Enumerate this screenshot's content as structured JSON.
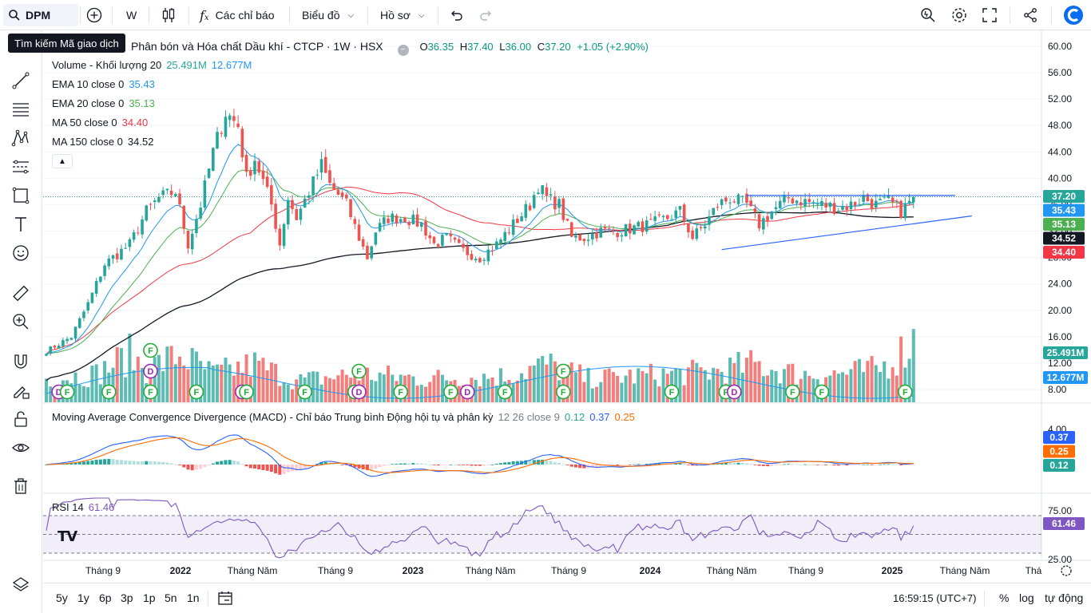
{
  "toolbar": {
    "symbol": "DPM",
    "interval": "W",
    "indicators_label": "Các chỉ báo",
    "chart_label": "Biểu đồ",
    "profile_label": "Hồ sơ"
  },
  "tooltip": "Tìm kiếm Mã giao dịch",
  "legend": {
    "title": "Phân bón và Hóa chất Dầu khí - CTCP · 1W · HSX",
    "o_label": "O",
    "o": "36.35",
    "h_label": "H",
    "h": "37.40",
    "l_label": "L",
    "l": "36.00",
    "c_label": "C",
    "c": "37.20",
    "change": "+1.05 (+2.90%)",
    "volume_label": "Volume - Khối lượng 20",
    "volume_v1": "25.491M",
    "volume_v2": "12.677M",
    "ema10_label": "EMA 10 close 0",
    "ema10": "35.43",
    "ema20_label": "EMA 20 close 0",
    "ema20": "35.13",
    "ma50_label": "MA 50 close 0",
    "ma50": "34.40",
    "ma150_label": "MA 150 close 0",
    "ma150": "34.52",
    "macd_label": "Moving Average Convergence Divergence (MACD) - Chỉ báo Trung bình Động hội tụ và phân kỳ",
    "macd_params": "12 26 close 9",
    "macd_v1": "0.12",
    "macd_v2": "0.37",
    "macd_v3": "0.25",
    "rsi_label": "RSI 14",
    "rsi_value": "61.46"
  },
  "colors": {
    "up": "#26a69a",
    "down": "#ef5350",
    "ema10": "#2196f3",
    "ema20": "#4caf50",
    "ma50": "#f23645",
    "ma150": "#131722",
    "macd": "#2962ff",
    "signal": "#ff6d00",
    "rsi": "#7e57c2",
    "event_f": "#22ab37",
    "event_d": "#9c27b0"
  },
  "bottombar": {
    "ranges": [
      "5y",
      "1y",
      "6p",
      "3p",
      "1p",
      "5n",
      "1n"
    ],
    "time": "16:59:15 (UTC+7)",
    "percent_label": "%",
    "log_label": "log",
    "auto_label": "tự động"
  },
  "chart_data": {
    "type": "candlestick",
    "price_axis": {
      "min": 8,
      "max": 60,
      "ticks": [
        "60.00",
        "56.00",
        "52.00",
        "48.00",
        "44.00",
        "40.00",
        "36.00",
        "32.00",
        "28.00",
        "24.00",
        "20.00",
        "16.00",
        "12.00",
        "8.00"
      ]
    },
    "time_axis": [
      "Tháng 9",
      "2022",
      "Tháng Năm",
      "Tháng 9",
      "2023",
      "Tháng Năm",
      "Tháng 9",
      "2024",
      "Tháng Năm",
      "Tháng 9",
      "2025",
      "Tháng Năm",
      "Thá"
    ],
    "price_labels": [
      "37.20",
      "35.43",
      "35.13",
      "34.52",
      "34.40"
    ],
    "volume_labels": [
      "25.491M",
      "12.677M"
    ],
    "macd_axis_tick": "4.00",
    "macd_labels": [
      "0.37",
      "0.25",
      "0.12"
    ],
    "rsi_axis_ticks": [
      "75.00",
      "25.00"
    ],
    "rsi_label": "61.46",
    "anchors": [
      [
        0,
        13.8
      ],
      [
        6,
        16
      ],
      [
        10,
        21
      ],
      [
        14,
        27
      ],
      [
        20,
        30
      ],
      [
        24,
        35
      ],
      [
        27,
        37
      ],
      [
        31,
        38
      ],
      [
        34,
        30
      ],
      [
        37,
        36
      ],
      [
        40,
        44
      ],
      [
        43,
        50
      ],
      [
        46,
        48
      ],
      [
        48,
        40
      ],
      [
        50,
        43
      ],
      [
        54,
        36
      ],
      [
        56,
        30
      ],
      [
        58,
        37
      ],
      [
        60,
        34
      ],
      [
        63,
        38
      ],
      [
        66,
        42
      ],
      [
        68,
        39
      ],
      [
        72,
        36
      ],
      [
        75,
        31
      ],
      [
        77,
        28
      ],
      [
        79,
        32
      ],
      [
        82,
        34
      ],
      [
        86,
        34
      ],
      [
        90,
        33
      ],
      [
        93,
        30
      ],
      [
        96,
        31
      ],
      [
        100,
        29
      ],
      [
        104,
        28
      ],
      [
        108,
        30
      ],
      [
        112,
        33
      ],
      [
        116,
        36
      ],
      [
        118,
        39
      ],
      [
        120,
        37
      ],
      [
        123,
        36
      ],
      [
        126,
        31
      ],
      [
        129,
        31
      ],
      [
        133,
        32
      ],
      [
        137,
        32
      ],
      [
        141,
        32.5
      ],
      [
        145,
        33
      ],
      [
        149,
        34
      ],
      [
        152,
        35
      ],
      [
        155,
        31
      ],
      [
        158,
        33
      ],
      [
        161,
        36
      ],
      [
        164,
        37
      ],
      [
        168,
        36
      ],
      [
        171,
        33
      ],
      [
        174,
        35
      ],
      [
        178,
        37
      ],
      [
        182,
        36.5
      ],
      [
        186,
        36
      ],
      [
        190,
        35.5
      ],
      [
        193,
        36
      ],
      [
        196,
        37
      ],
      [
        199,
        36
      ],
      [
        202,
        36.5
      ],
      [
        205,
        35
      ],
      [
        207,
        36.35
      ],
      [
        208,
        37.2
      ]
    ],
    "volume_peaks": [
      [
        0,
        10
      ],
      [
        12,
        12
      ],
      [
        20,
        20
      ],
      [
        24,
        14
      ],
      [
        32,
        20
      ],
      [
        40,
        12
      ],
      [
        50,
        16
      ],
      [
        60,
        9
      ],
      [
        75,
        12
      ],
      [
        90,
        10
      ],
      [
        110,
        11
      ],
      [
        120,
        16
      ],
      [
        130,
        10
      ],
      [
        150,
        12
      ],
      [
        160,
        13
      ],
      [
        170,
        16
      ],
      [
        180,
        12
      ],
      [
        190,
        12
      ],
      [
        200,
        14
      ],
      [
        208,
        25.5
      ]
    ],
    "event_markers": [
      {
        "i": 3,
        "label": "D",
        "tier": 0
      },
      {
        "i": 5,
        "label": "F",
        "tier": 0
      },
      {
        "i": 15,
        "label": "F",
        "tier": 0
      },
      {
        "i": 25,
        "label": "F",
        "tier": 0
      },
      {
        "i": 25,
        "label": "D",
        "tier": 1
      },
      {
        "i": 25,
        "label": "F",
        "tier": 2
      },
      {
        "i": 36,
        "label": "F",
        "tier": 0
      },
      {
        "i": 47,
        "label": "D",
        "tier": 0
      },
      {
        "i": 48,
        "label": "F",
        "tier": 0
      },
      {
        "i": 62,
        "label": "F",
        "tier": 0
      },
      {
        "i": 74,
        "label": "F",
        "tier": 0
      },
      {
        "i": 75,
        "label": "D",
        "tier": 0
      },
      {
        "i": 75,
        "label": "F",
        "tier": 1
      },
      {
        "i": 85,
        "label": "F",
        "tier": 0
      },
      {
        "i": 97,
        "label": "F",
        "tier": 0
      },
      {
        "i": 101,
        "label": "D",
        "tier": 0
      },
      {
        "i": 110,
        "label": "F",
        "tier": 0
      },
      {
        "i": 124,
        "label": "F",
        "tier": 0
      },
      {
        "i": 124,
        "label": "F",
        "tier": 1
      },
      {
        "i": 150,
        "label": "F",
        "tier": 0
      },
      {
        "i": 163,
        "label": "F",
        "tier": 0
      },
      {
        "i": 165,
        "label": "D",
        "tier": 0
      },
      {
        "i": 179,
        "label": "F",
        "tier": 0
      },
      {
        "i": 186,
        "label": "F",
        "tier": 0
      },
      {
        "i": 206,
        "label": "F",
        "tier": 0
      }
    ]
  }
}
